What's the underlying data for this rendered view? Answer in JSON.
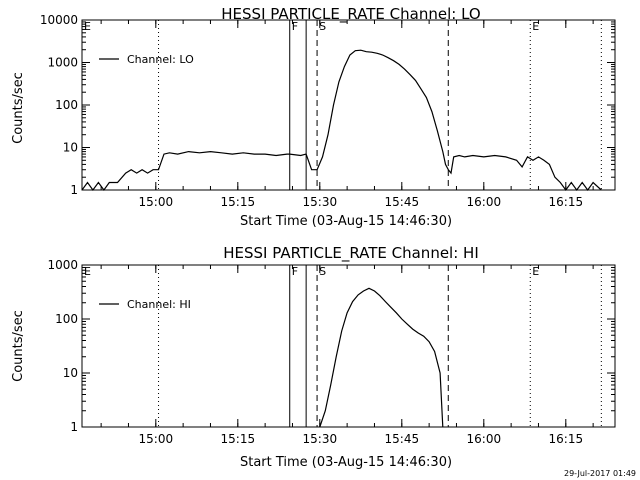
{
  "footer": {
    "timestamp": "29-Jul-2017 01:49"
  },
  "chart_data": [
    {
      "type": "line",
      "title": "HESSI PARTICLE_RATE Channel: LO",
      "xlabel": "Start Time (03-Aug-15 14:46:30)",
      "ylabel": "Counts/sec",
      "yscale": "log",
      "xlim": [
        "14:46:30",
        "16:24:00"
      ],
      "ylim": [
        1,
        10000
      ],
      "x_ticks": [
        "15:00",
        "15:15",
        "15:30",
        "15:45",
        "16:00",
        "16:15"
      ],
      "y_ticks": [
        "1",
        "10",
        "100",
        "1000",
        "10000"
      ],
      "grid": false,
      "legend": {
        "position": "top-left",
        "entries": [
          "Channel: LO"
        ]
      },
      "markers": [
        {
          "label": "E",
          "time": "14:46:30",
          "style": "dotted"
        },
        {
          "label": "",
          "time": "15:00:30",
          "style": "dotted"
        },
        {
          "label": "F",
          "time": "15:24:30",
          "style": "solid"
        },
        {
          "label": "",
          "time": "15:27:30",
          "style": "solid"
        },
        {
          "label": "S",
          "time": "15:29:30",
          "style": "dashed"
        },
        {
          "label": "",
          "time": "15:53:30",
          "style": "dashed"
        },
        {
          "label": "E",
          "time": "16:08:30",
          "style": "dotted"
        },
        {
          "label": "",
          "time": "16:21:30",
          "style": "dotted"
        }
      ],
      "series": [
        {
          "name": "Channel: LO",
          "x": [
            "14:46:30",
            "14:47:30",
            "14:48:30",
            "14:49:30",
            "14:50:30",
            "14:51:30",
            "14:53:00",
            "14:54:30",
            "14:55:30",
            "14:56:30",
            "14:57:30",
            "14:58:30",
            "14:59:30",
            "15:00:30",
            "15:01:30",
            "15:02:30",
            "15:04:00",
            "15:06:00",
            "15:08:00",
            "15:10:00",
            "15:12:00",
            "15:14:00",
            "15:16:00",
            "15:18:00",
            "15:20:00",
            "15:22:00",
            "15:24:00",
            "15:24:30",
            "15:26:30",
            "15:27:30",
            "15:28:30",
            "15:29:30",
            "15:30:30",
            "15:31:30",
            "15:32:30",
            "15:33:30",
            "15:34:30",
            "15:35:30",
            "15:36:30",
            "15:37:30",
            "15:38:30",
            "15:39:30",
            "15:40:30",
            "15:41:30",
            "15:42:30",
            "15:43:30",
            "15:44:30",
            "15:45:30",
            "15:46:30",
            "15:47:30",
            "15:48:30",
            "15:49:30",
            "15:50:30",
            "15:51:30",
            "15:52:30",
            "15:53:00",
            "15:53:30",
            "15:54:00",
            "15:54:30",
            "15:55:30",
            "15:56:30",
            "15:58:00",
            "16:00:00",
            "16:02:00",
            "16:04:00",
            "16:06:00",
            "16:07:00",
            "16:08:00",
            "16:09:00",
            "16:10:00",
            "16:11:00",
            "16:12:00",
            "16:13:00",
            "16:14:00",
            "16:15:00",
            "16:16:00",
            "16:17:00",
            "16:18:00",
            "16:19:00",
            "16:20:00",
            "16:21:30"
          ],
          "values": [
            1,
            1.5,
            1,
            1.5,
            1,
            1.5,
            1.5,
            2.5,
            3,
            2.5,
            3,
            2.5,
            3,
            3,
            7,
            7.5,
            7,
            8,
            7.5,
            8,
            7.5,
            7,
            7.5,
            7,
            7,
            6.5,
            7,
            7,
            6.5,
            7,
            3,
            3,
            6,
            20,
            100,
            350,
            800,
            1500,
            1900,
            1950,
            1800,
            1750,
            1650,
            1500,
            1300,
            1100,
            900,
            700,
            520,
            380,
            240,
            150,
            70,
            25,
            8,
            4,
            3,
            2.5,
            6,
            6.5,
            6,
            6.5,
            6,
            6.5,
            6,
            5,
            3.5,
            6,
            5,
            6,
            5,
            4,
            2,
            1.5,
            1,
            1.5,
            1,
            1.5,
            1,
            1.5,
            1
          ]
        }
      ]
    },
    {
      "type": "line",
      "title": "HESSI PARTICLE_RATE Channel: HI",
      "xlabel": "Start Time (03-Aug-15 14:46:30)",
      "ylabel": "Counts/sec",
      "yscale": "log",
      "xlim": [
        "14:46:30",
        "16:24:00"
      ],
      "ylim": [
        1,
        1000
      ],
      "x_ticks": [
        "15:00",
        "15:15",
        "15:30",
        "15:45",
        "16:00",
        "16:15"
      ],
      "y_ticks": [
        "1",
        "10",
        "100",
        "1000"
      ],
      "grid": false,
      "legend": {
        "position": "top-left",
        "entries": [
          "Channel: HI"
        ]
      },
      "markers": [
        {
          "label": "E",
          "time": "14:46:30",
          "style": "dotted"
        },
        {
          "label": "",
          "time": "15:00:30",
          "style": "dotted"
        },
        {
          "label": "F",
          "time": "15:24:30",
          "style": "solid"
        },
        {
          "label": "",
          "time": "15:27:30",
          "style": "solid"
        },
        {
          "label": "S",
          "time": "15:29:30",
          "style": "dashed"
        },
        {
          "label": "",
          "time": "15:53:30",
          "style": "dashed"
        },
        {
          "label": "E",
          "time": "16:08:30",
          "style": "dotted"
        },
        {
          "label": "",
          "time": "16:21:30",
          "style": "dotted"
        }
      ],
      "series": [
        {
          "name": "Channel: HI",
          "x": [
            "15:30:00",
            "15:31:00",
            "15:32:00",
            "15:33:00",
            "15:34:00",
            "15:35:00",
            "15:36:00",
            "15:37:00",
            "15:38:00",
            "15:39:00",
            "15:40:00",
            "15:41:00",
            "15:42:00",
            "15:43:00",
            "15:44:00",
            "15:45:00",
            "15:46:00",
            "15:47:00",
            "15:48:00",
            "15:49:00",
            "15:50:00",
            "15:51:00",
            "15:52:00",
            "15:52:30"
          ],
          "values": [
            1,
            2,
            6,
            20,
            60,
            130,
            210,
            280,
            330,
            370,
            330,
            270,
            210,
            165,
            130,
            100,
            80,
            65,
            55,
            48,
            38,
            25,
            10,
            1
          ]
        }
      ]
    }
  ]
}
